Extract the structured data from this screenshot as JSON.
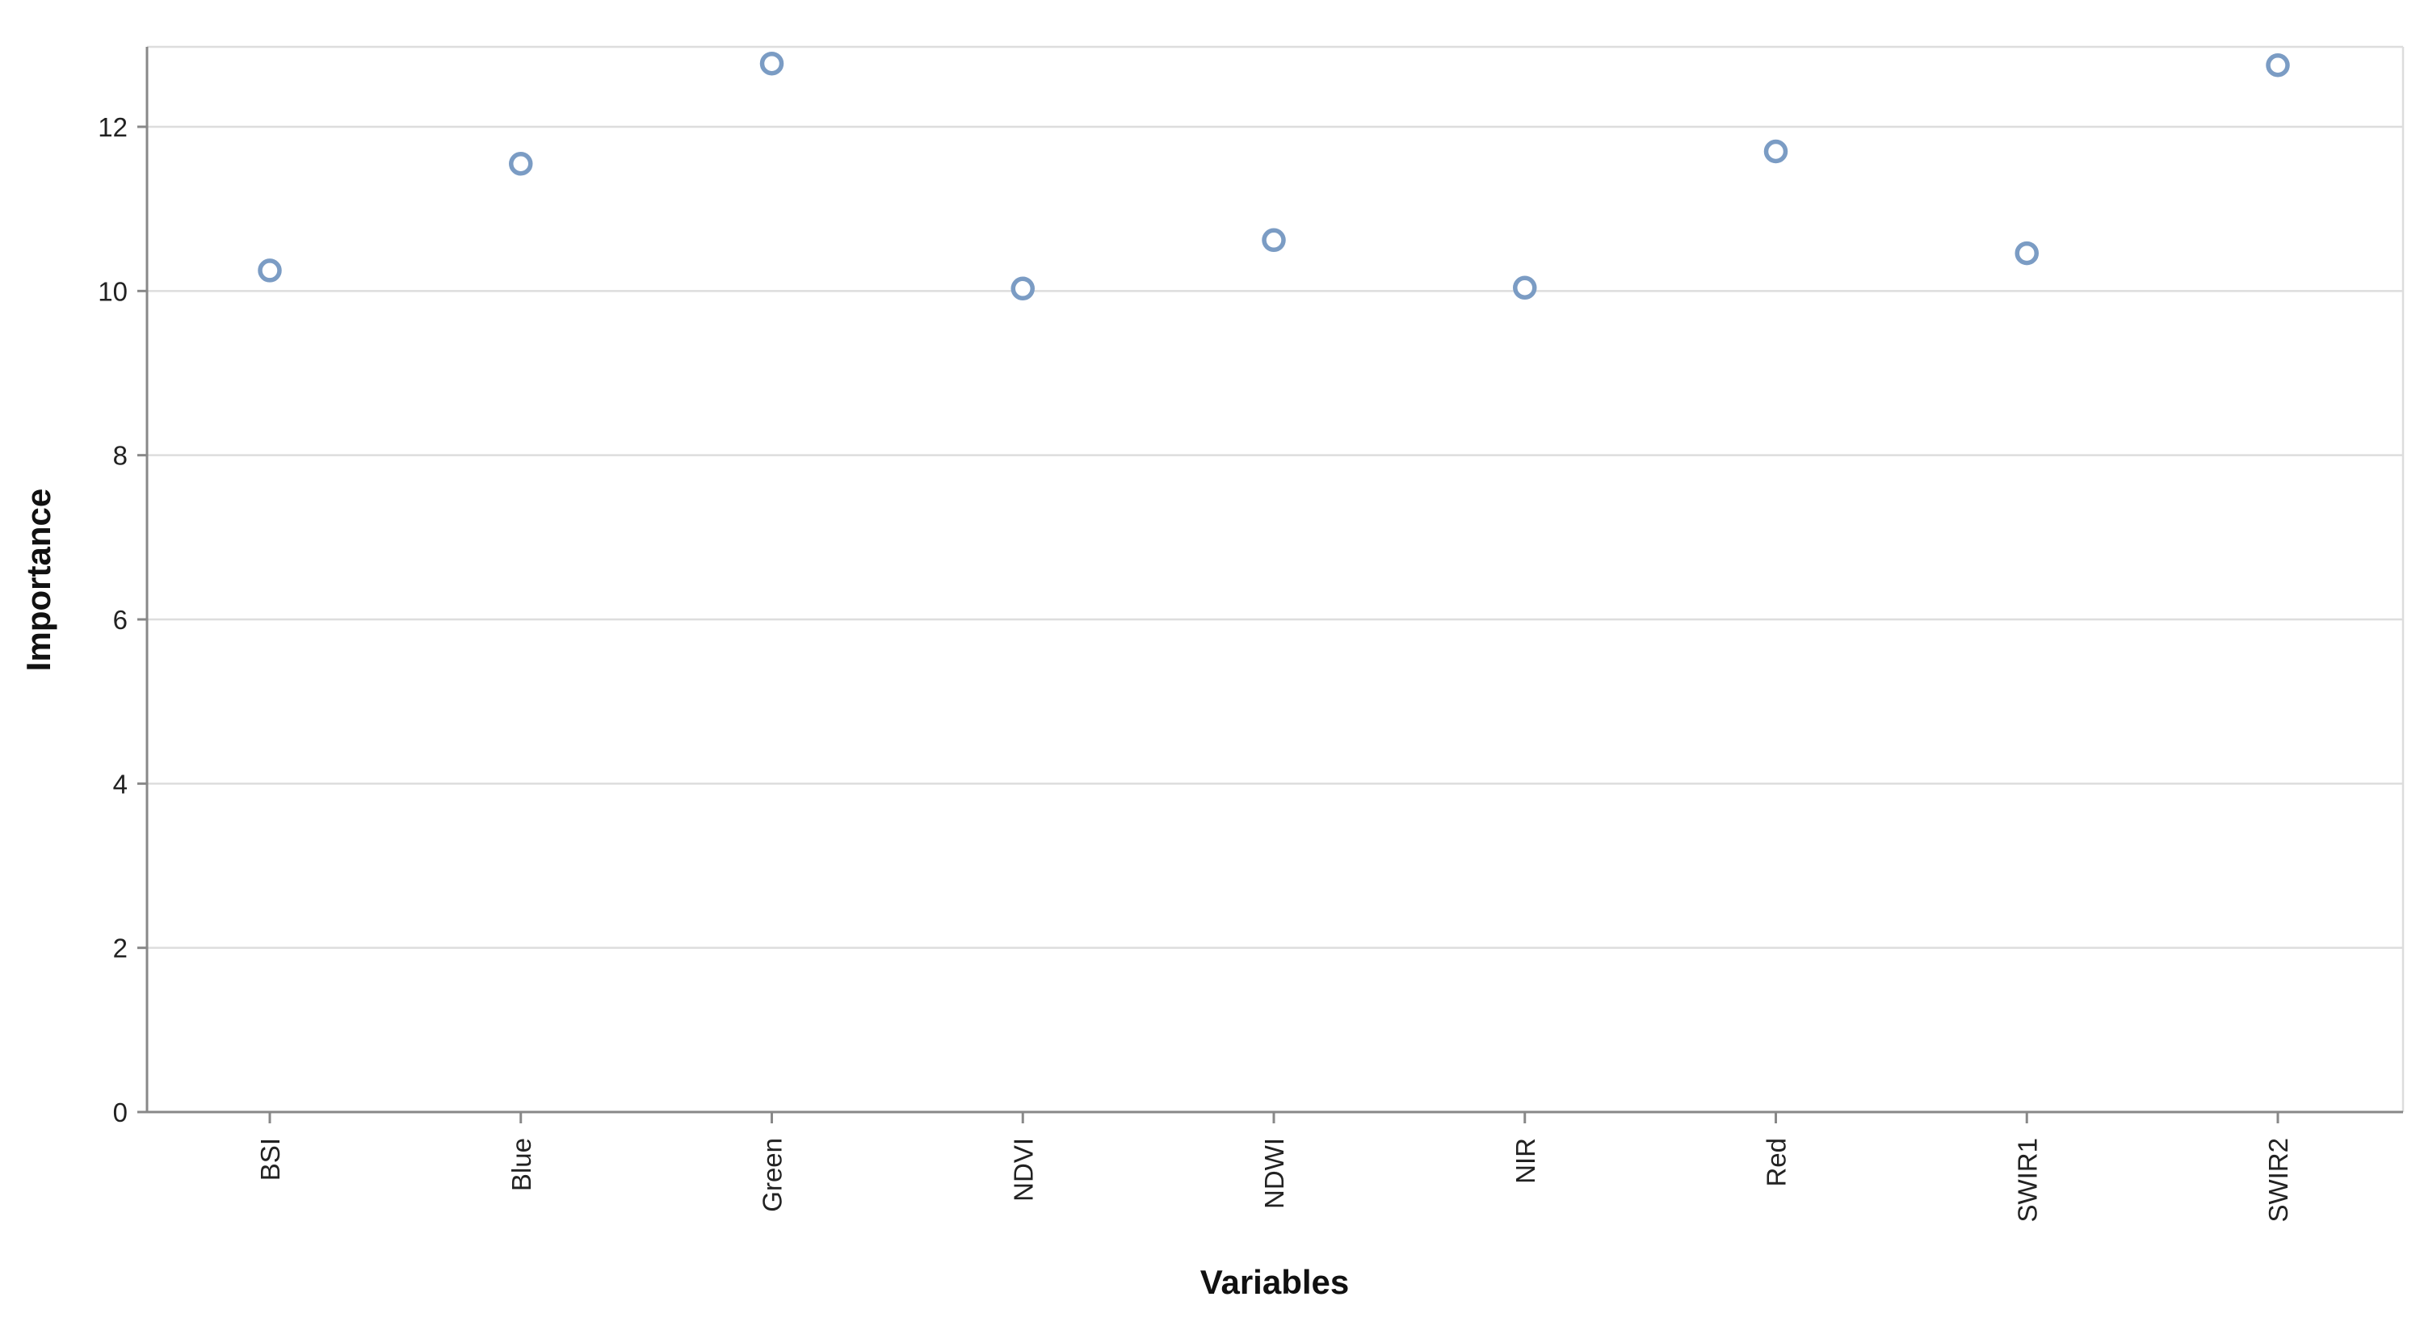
{
  "chart_data": {
    "type": "scatter",
    "categories": [
      "BSI",
      "Blue",
      "Green",
      "NDVI",
      "NDWI",
      "NIR",
      "Red",
      "SWIR1",
      "SWIR2"
    ],
    "values": [
      10.25,
      11.55,
      12.77,
      10.03,
      10.62,
      10.04,
      11.7,
      10.46,
      12.75
    ],
    "xlabel": "Variables",
    "ylabel": "Importance",
    "ylim": [
      0,
      13
    ],
    "yticks": [
      0,
      2,
      4,
      6,
      8,
      10,
      12
    ],
    "ytick_labels": [
      "0",
      "2",
      "4",
      "6",
      "8",
      "10",
      "12"
    ],
    "grid": true,
    "point_color": "#7b9cc4",
    "grid_color": "#dddddd",
    "axis_color": "#888888"
  }
}
